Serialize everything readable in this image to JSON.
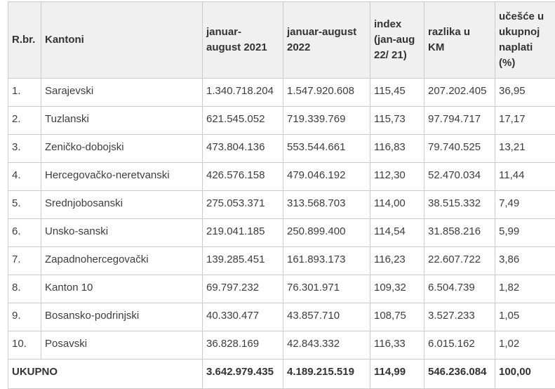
{
  "chart_data": {
    "type": "table",
    "columns": [
      "R.br.",
      "Kantoni",
      "januar-august 2021",
      "januar-august 2022",
      "index (jan-aug 22/ 21)",
      "razlika u KM",
      "učešće u ukupnoj naplati (%)"
    ],
    "rows": [
      [
        "1.",
        "Sarajevski",
        "1.340.718.204",
        "1.547.920.608",
        "115,45",
        "207.202.405",
        "36,95"
      ],
      [
        "2.",
        "Tuzlanski",
        "621.545.052",
        "719.339.769",
        "115,73",
        "97.794.717",
        "17,17"
      ],
      [
        "3.",
        "Zeničko-dobojski",
        "473.804.136",
        "553.544.661",
        "116,83",
        "79.740.525",
        "13,21"
      ],
      [
        "4.",
        "Hercegovačko-neretvanski",
        "426.576.158",
        "479.046.192",
        "112,30",
        "52.470.034",
        "11,44"
      ],
      [
        "5.",
        "Srednjobosanski",
        "275.053.371",
        "313.568.703",
        "114,00",
        "38.515.332",
        "7,49"
      ],
      [
        "6.",
        "Unsko-sanski",
        "219.041.185",
        "250.899.400",
        "114,54",
        "31.858.216",
        "5,99"
      ],
      [
        "7.",
        "Zapadnohercegovački",
        "139.285.451",
        "161.893.173",
        "116,23",
        "22.607.722",
        "3,86"
      ],
      [
        "8.",
        "Kanton 10",
        "69.797.232",
        "76.301.971",
        "109,32",
        "6.504.739",
        "1,82"
      ],
      [
        "9.",
        "Bosansko-podrinjski",
        "40.330.477",
        "43.857.710",
        "108,75",
        "3.527.233",
        "1,05"
      ],
      [
        "10.",
        "Posavski",
        "36.828.169",
        "42.843.332",
        "116,33",
        "6.015.162",
        "1,02"
      ]
    ],
    "total_row": [
      "UKUPNO",
      "3.642.979.435",
      "4.189.215.519",
      "114,99",
      "546.236.084",
      "100,00"
    ],
    "layout": {
      "grid": "on",
      "legend": "none",
      "first_total_cell_colspan": 2
    }
  },
  "colors": {
    "header_background": "#f0f0f0",
    "border": "#cccccc",
    "row_background": "#ffffff",
    "text": "#3d3d3d"
  }
}
